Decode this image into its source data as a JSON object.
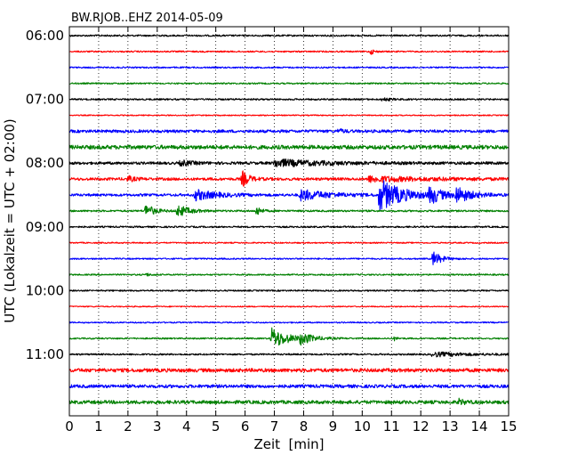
{
  "chart_data": {
    "type": "line",
    "title": "BW.RJOB..EHZ 2014-05-09",
    "xlabel": "Zeit  [min]",
    "ylabel": "UTC (Lokalzeit = UTC + 02:00)",
    "xlim": [
      0,
      15
    ],
    "x_ticks": [
      "0",
      "1",
      "2",
      "3",
      "4",
      "5",
      "6",
      "7",
      "8",
      "9",
      "10",
      "11",
      "12",
      "13",
      "14",
      "15"
    ],
    "grid": "vertical dotted",
    "row_minutes": 15,
    "row_colors": [
      "#000000",
      "#ff0000",
      "#0000ff",
      "#008000"
    ],
    "y_tick_labels": [
      {
        "label": "06:00",
        "row": 0
      },
      {
        "label": "07:00",
        "row": 4
      },
      {
        "label": "08:00",
        "row": 8
      },
      {
        "label": "09:00",
        "row": 12
      },
      {
        "label": "10:00",
        "row": 16
      },
      {
        "label": "11:00",
        "row": 20
      }
    ],
    "rows": [
      {
        "start": "06:00",
        "noise": 0.9,
        "events": []
      },
      {
        "start": "06:15",
        "noise": 0.8,
        "events": [
          {
            "t": 10.3,
            "amp": 3,
            "dur": 0.25
          }
        ]
      },
      {
        "start": "06:30",
        "noise": 0.8,
        "events": []
      },
      {
        "start": "06:45",
        "noise": 0.8,
        "events": []
      },
      {
        "start": "07:00",
        "noise": 0.9,
        "events": [
          {
            "t": 10.7,
            "amp": 2,
            "dur": 0.5
          }
        ]
      },
      {
        "start": "07:15",
        "noise": 0.6,
        "events": []
      },
      {
        "start": "07:30",
        "noise": 1.6,
        "events": [
          {
            "t": 9.2,
            "amp": 2,
            "dur": 0.4
          }
        ]
      },
      {
        "start": "07:45",
        "noise": 2.2,
        "events": []
      },
      {
        "start": "08:00",
        "noise": 1.5,
        "events": [
          {
            "t": 3.8,
            "amp": 3,
            "dur": 0.8
          },
          {
            "t": 7.0,
            "amp": 4,
            "dur": 3.5
          }
        ]
      },
      {
        "start": "08:15",
        "noise": 1.5,
        "events": [
          {
            "t": 2.0,
            "amp": 3,
            "dur": 0.5
          },
          {
            "t": 5.9,
            "amp": 9,
            "dur": 0.5
          },
          {
            "t": 10.2,
            "amp": 3,
            "dur": 4.5
          }
        ]
      },
      {
        "start": "08:30",
        "noise": 1.4,
        "events": [
          {
            "t": 4.3,
            "amp": 6,
            "dur": 1.5
          },
          {
            "t": 7.9,
            "amp": 6,
            "dur": 2.0
          },
          {
            "t": 10.6,
            "amp": 18,
            "dur": 1.6
          },
          {
            "t": 12.3,
            "amp": 10,
            "dur": 0.8
          },
          {
            "t": 13.2,
            "amp": 9,
            "dur": 1.0
          }
        ]
      },
      {
        "start": "08:45",
        "noise": 1.0,
        "events": [
          {
            "t": 2.6,
            "amp": 8,
            "dur": 0.6
          },
          {
            "t": 3.7,
            "amp": 7,
            "dur": 0.8
          },
          {
            "t": 6.4,
            "amp": 6,
            "dur": 0.3
          }
        ]
      },
      {
        "start": "09:00",
        "noise": 0.9,
        "events": []
      },
      {
        "start": "09:15",
        "noise": 0.7,
        "events": []
      },
      {
        "start": "09:30",
        "noise": 0.8,
        "events": [
          {
            "t": 12.4,
            "amp": 9,
            "dur": 0.6
          }
        ]
      },
      {
        "start": "09:45",
        "noise": 0.8,
        "events": [
          {
            "t": 2.6,
            "amp": 2,
            "dur": 0.3
          }
        ]
      },
      {
        "start": "10:00",
        "noise": 0.8,
        "events": []
      },
      {
        "start": "10:15",
        "noise": 0.6,
        "events": []
      },
      {
        "start": "10:30",
        "noise": 0.7,
        "events": []
      },
      {
        "start": "10:45",
        "noise": 0.8,
        "events": [
          {
            "t": 6.9,
            "amp": 12,
            "dur": 1.2
          },
          {
            "t": 7.9,
            "amp": 6,
            "dur": 0.8
          },
          {
            "t": 11.1,
            "amp": 2,
            "dur": 0.2
          }
        ]
      },
      {
        "start": "11:00",
        "noise": 0.9,
        "events": [
          {
            "t": 12.4,
            "amp": 2.5,
            "dur": 2.6
          }
        ]
      },
      {
        "start": "11:15",
        "noise": 2.0,
        "events": []
      },
      {
        "start": "11:30",
        "noise": 1.8,
        "events": []
      },
      {
        "start": "11:45",
        "noise": 1.9,
        "events": [
          {
            "t": 13.3,
            "amp": 3,
            "dur": 0.4
          }
        ]
      }
    ]
  }
}
